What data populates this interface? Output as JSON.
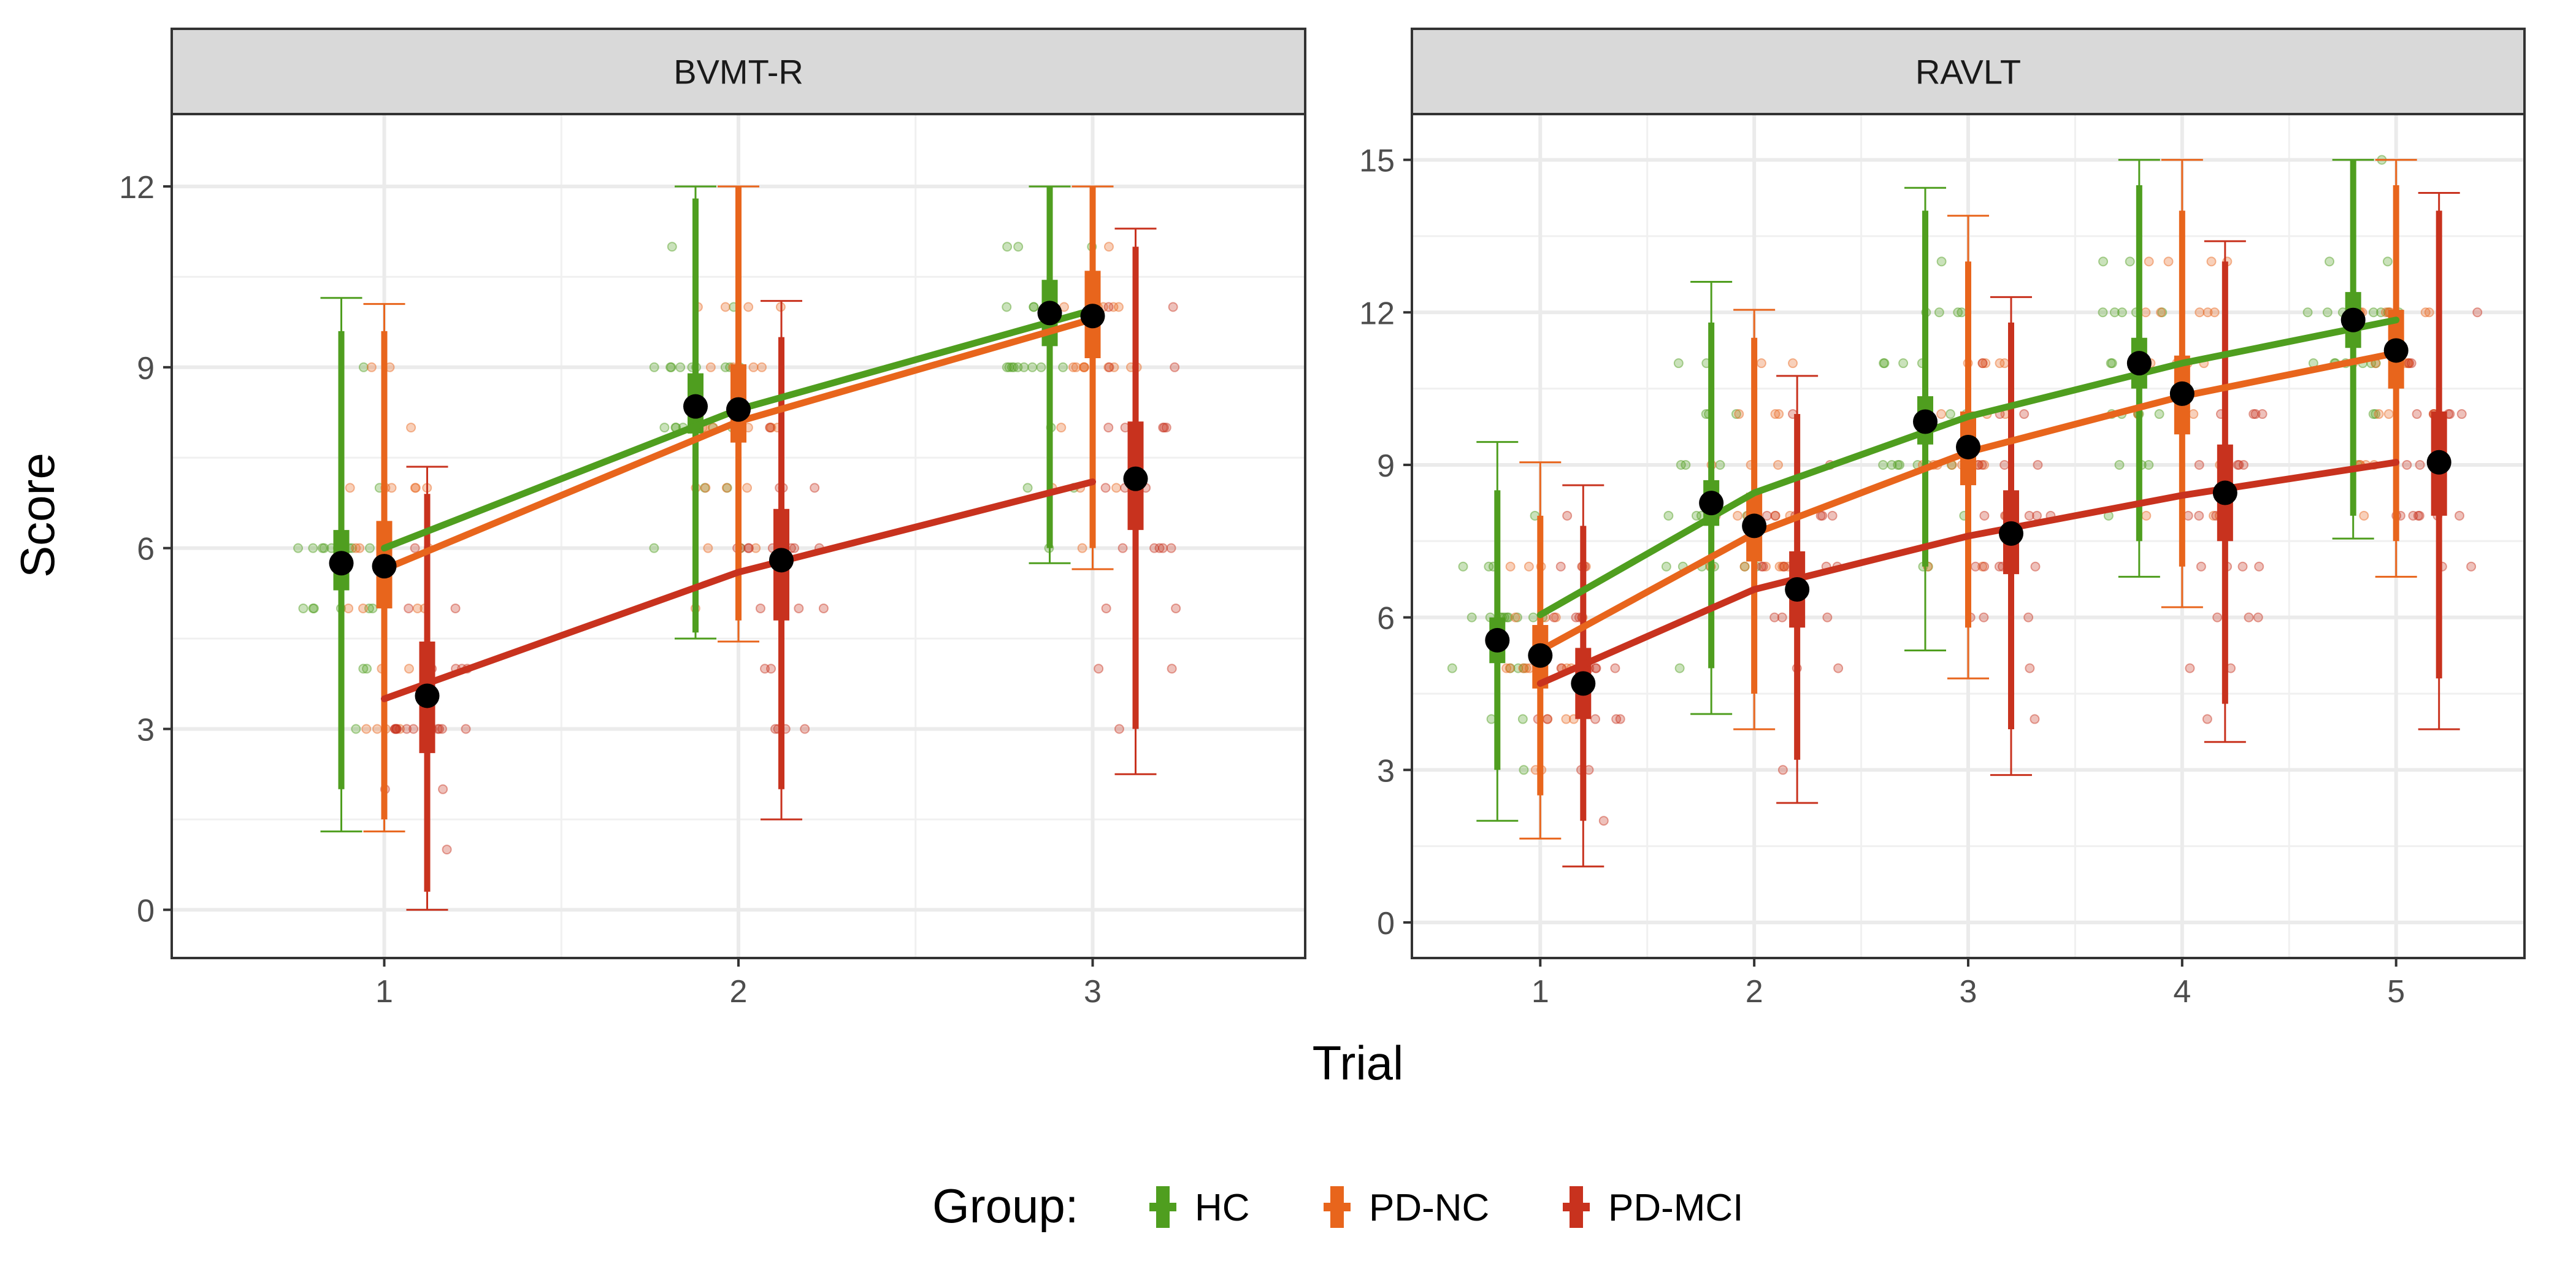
{
  "figure": {
    "xlabel": "Trial",
    "ylabel": "Score"
  },
  "legend": {
    "title": "Group:",
    "items": [
      {
        "label": "HC",
        "color": "#4f9e1f"
      },
      {
        "label": "PD-NC",
        "color": "#e8651c"
      },
      {
        "label": "PD-MCI",
        "color": "#c8321e"
      }
    ]
  },
  "chart_data": [
    {
      "type": "line",
      "title": "BVMT-R",
      "xlabel": "Trial",
      "ylabel": "Score",
      "x": [
        1,
        2,
        3
      ],
      "ylim": [
        -0.8,
        13.2
      ],
      "yticks": [
        0,
        3,
        6,
        9,
        12
      ],
      "grid": true,
      "series": [
        {
          "name": "HC",
          "means": [
            5.75,
            8.35,
            9.9
          ],
          "fit": [
            6.0,
            8.3,
            9.95
          ],
          "ci80": [
            [
              5.3,
              6.3
            ],
            [
              7.9,
              8.9
            ],
            [
              9.35,
              10.45
            ]
          ],
          "ci95": [
            [
              2.0,
              9.6
            ],
            [
              4.6,
              11.8
            ],
            [
              6.0,
              12.0
            ]
          ],
          "whisker": [
            [
              1.3,
              10.15
            ],
            [
              4.5,
              12.0
            ],
            [
              5.75,
              12.0
            ]
          ]
        },
        {
          "name": "PD-NC",
          "means": [
            5.7,
            8.3,
            9.85
          ],
          "fit": [
            5.65,
            8.1,
            9.8
          ],
          "ci80": [
            [
              5.0,
              6.45
            ],
            [
              7.75,
              9.05
            ],
            [
              9.15,
              10.6
            ]
          ],
          "ci95": [
            [
              1.5,
              9.6
            ],
            [
              4.8,
              12.0
            ],
            [
              6.0,
              12.0
            ]
          ],
          "whisker": [
            [
              1.3,
              10.05
            ],
            [
              4.45,
              12.0
            ],
            [
              5.65,
              12.0
            ]
          ]
        },
        {
          "name": "PD-MCI",
          "means": [
            3.55,
            5.8,
            7.15
          ],
          "fit": [
            3.5,
            5.6,
            7.1
          ],
          "ci80": [
            [
              2.6,
              4.45
            ],
            [
              4.8,
              6.65
            ],
            [
              6.3,
              8.1
            ]
          ],
          "ci95": [
            [
              0.3,
              6.9
            ],
            [
              2.0,
              9.5
            ],
            [
              3.0,
              11.0
            ]
          ],
          "whisker": [
            [
              0.0,
              7.35
            ],
            [
              1.5,
              10.1
            ],
            [
              2.25,
              11.3
            ]
          ]
        }
      ]
    },
    {
      "type": "line",
      "title": "RAVLT",
      "xlabel": "Trial",
      "ylabel": "Score",
      "x": [
        1,
        2,
        3,
        4,
        5
      ],
      "ylim": [
        -0.7,
        15.9
      ],
      "yticks": [
        0,
        3,
        6,
        9,
        12,
        15
      ],
      "grid": true,
      "series": [
        {
          "name": "HC",
          "means": [
            5.55,
            8.25,
            9.85,
            11.0,
            11.85
          ],
          "fit": [
            6.05,
            8.45,
            9.95,
            11.0,
            11.85
          ],
          "ci80": [
            [
              5.1,
              6.0
            ],
            [
              7.8,
              8.7
            ],
            [
              9.4,
              10.35
            ],
            [
              10.5,
              11.5
            ],
            [
              11.3,
              12.4
            ]
          ],
          "ci95": [
            [
              3.0,
              8.5
            ],
            [
              5.0,
              11.8
            ],
            [
              7.0,
              14.0
            ],
            [
              7.5,
              14.5
            ],
            [
              8.0,
              15.0
            ]
          ],
          "whisker": [
            [
              2.0,
              9.45
            ],
            [
              4.1,
              12.6
            ],
            [
              5.35,
              14.45
            ],
            [
              6.8,
              15.0
            ],
            [
              7.55,
              15.0
            ]
          ]
        },
        {
          "name": "PD-NC",
          "means": [
            5.25,
            7.8,
            9.35,
            10.4,
            11.25
          ],
          "fit": [
            5.35,
            7.65,
            9.25,
            10.35,
            11.2
          ],
          "ci80": [
            [
              4.6,
              5.85
            ],
            [
              7.1,
              8.45
            ],
            [
              8.6,
              10.05
            ],
            [
              9.6,
              11.15
            ],
            [
              10.5,
              12.05
            ]
          ],
          "ci95": [
            [
              2.5,
              8.0
            ],
            [
              4.5,
              11.5
            ],
            [
              5.8,
              13.0
            ],
            [
              7.0,
              14.0
            ],
            [
              7.5,
              14.5
            ]
          ],
          "whisker": [
            [
              1.65,
              9.05
            ],
            [
              3.8,
              12.05
            ],
            [
              4.8,
              13.9
            ],
            [
              6.2,
              15.0
            ],
            [
              6.8,
              15.0
            ]
          ]
        },
        {
          "name": "PD-MCI",
          "means": [
            4.7,
            6.55,
            7.65,
            8.45,
            9.05
          ],
          "fit": [
            4.7,
            6.55,
            7.6,
            8.4,
            9.05
          ],
          "ci80": [
            [
              4.0,
              5.4
            ],
            [
              5.8,
              7.3
            ],
            [
              6.85,
              8.5
            ],
            [
              7.5,
              9.4
            ],
            [
              8.0,
              10.05
            ]
          ],
          "ci95": [
            [
              2.0,
              7.8
            ],
            [
              3.2,
              10.0
            ],
            [
              3.8,
              11.8
            ],
            [
              4.3,
              13.0
            ],
            [
              4.8,
              14.0
            ]
          ],
          "whisker": [
            [
              1.1,
              8.6
            ],
            [
              2.35,
              10.75
            ],
            [
              2.9,
              12.3
            ],
            [
              3.55,
              13.4
            ],
            [
              3.8,
              14.35
            ]
          ]
        }
      ]
    }
  ]
}
